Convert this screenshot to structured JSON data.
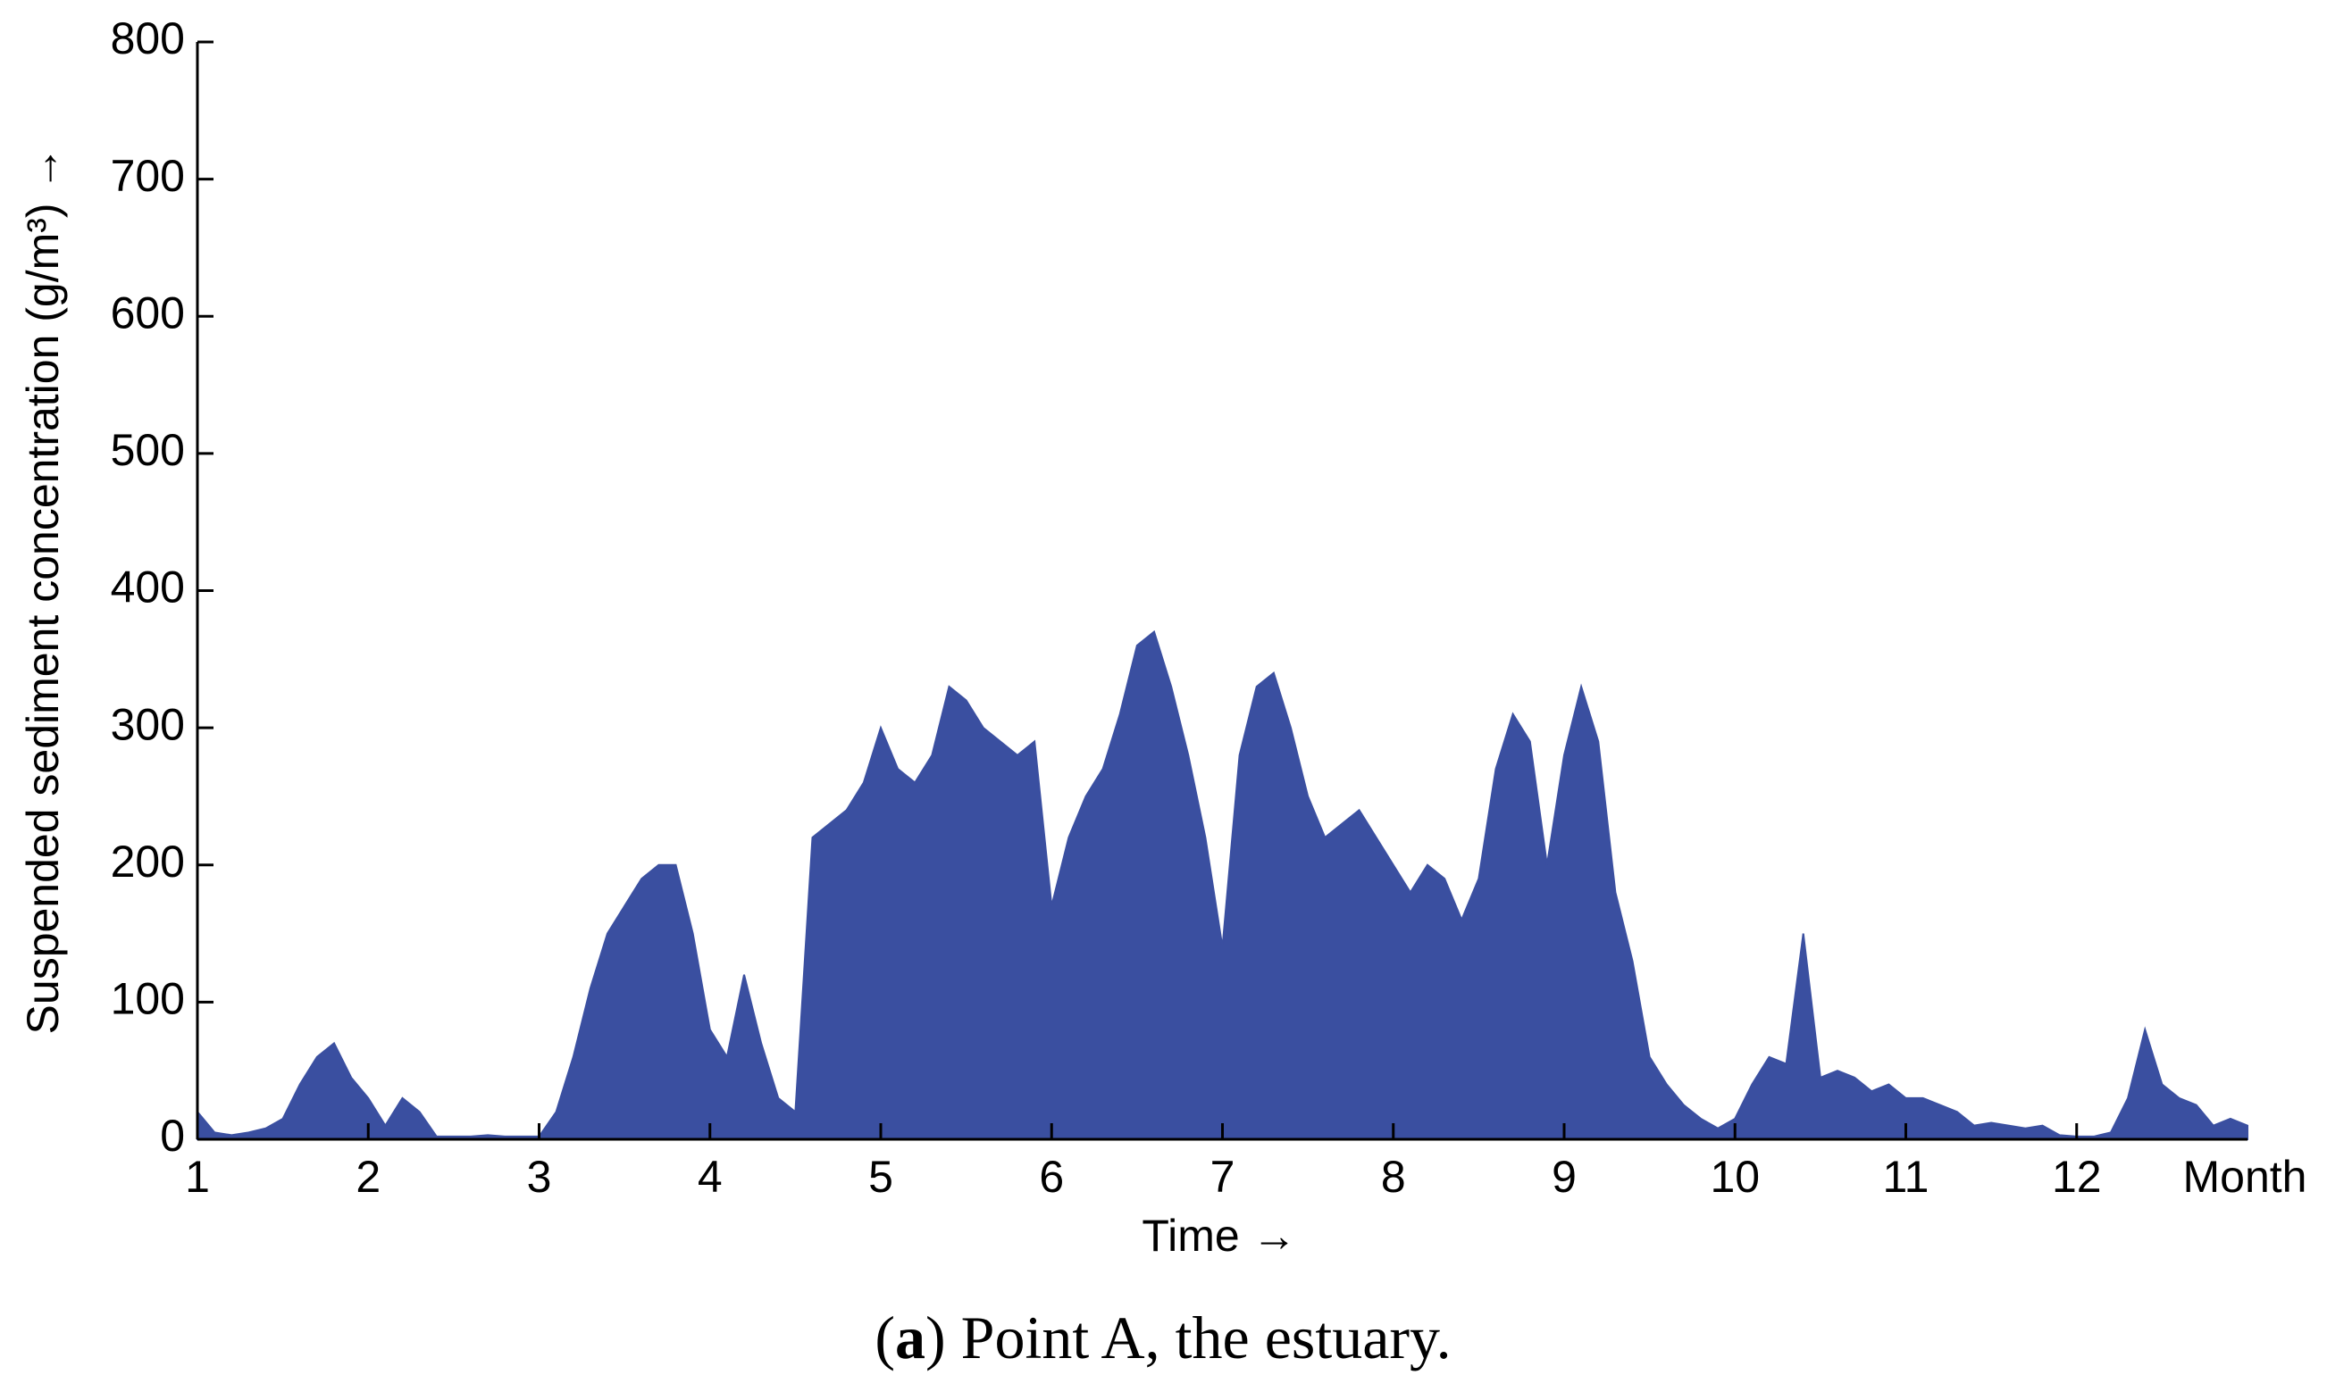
{
  "chart_data": {
    "type": "area",
    "y_label": "Suspended sediment concentration (g/m³) →",
    "x_label": "Time →",
    "x_unit_label": "Month",
    "caption": {
      "open": "(",
      "letter": "a",
      "text": ") Point A, the estuary."
    },
    "x": [
      1.0,
      1.1,
      1.2,
      1.3,
      1.4,
      1.5,
      1.6,
      1.7,
      1.8,
      1.9,
      2.0,
      2.1,
      2.2,
      2.3,
      2.4,
      2.5,
      2.6,
      2.7,
      2.8,
      2.9,
      3.0,
      3.1,
      3.2,
      3.3,
      3.4,
      3.5,
      3.6,
      3.7,
      3.8,
      3.9,
      4.0,
      4.1,
      4.2,
      4.3,
      4.4,
      4.5,
      4.6,
      4.7,
      4.8,
      4.9,
      5.0,
      5.1,
      5.2,
      5.3,
      5.4,
      5.5,
      5.6,
      5.7,
      5.8,
      5.9,
      6.0,
      6.1,
      6.2,
      6.3,
      6.4,
      6.5,
      6.6,
      6.7,
      6.8,
      6.9,
      7.0,
      7.1,
      7.2,
      7.3,
      7.4,
      7.5,
      7.6,
      7.7,
      7.8,
      7.9,
      8.0,
      8.1,
      8.2,
      8.3,
      8.4,
      8.5,
      8.6,
      8.7,
      8.8,
      8.9,
      9.0,
      9.1,
      9.2,
      9.3,
      9.4,
      9.5,
      9.6,
      9.7,
      9.8,
      9.9,
      10.0,
      10.1,
      10.2,
      10.3,
      10.4,
      10.5,
      10.6,
      10.7,
      10.8,
      10.9,
      11.0,
      11.1,
      11.2,
      11.3,
      11.4,
      11.5,
      11.6,
      11.7,
      11.8,
      11.9,
      12.0,
      12.1,
      12.2,
      12.3,
      12.4,
      12.5,
      12.6,
      12.7,
      12.8,
      12.9,
      13.0
    ],
    "values": [
      20,
      5,
      3,
      5,
      8,
      15,
      40,
      60,
      70,
      45,
      30,
      10,
      30,
      20,
      2,
      2,
      2,
      3,
      2,
      2,
      2,
      20,
      60,
      110,
      150,
      170,
      190,
      200,
      200,
      150,
      80,
      60,
      120,
      70,
      30,
      20,
      220,
      230,
      240,
      260,
      300,
      270,
      260,
      280,
      330,
      320,
      300,
      290,
      280,
      290,
      170,
      220,
      250,
      270,
      310,
      360,
      370,
      330,
      280,
      220,
      140,
      280,
      330,
      340,
      300,
      250,
      220,
      230,
      240,
      220,
      200,
      180,
      200,
      190,
      160,
      190,
      270,
      310,
      290,
      200,
      280,
      330,
      290,
      180,
      130,
      60,
      40,
      25,
      15,
      8,
      15,
      40,
      60,
      55,
      150,
      45,
      50,
      45,
      35,
      40,
      30,
      30,
      25,
      20,
      10,
      12,
      10,
      8,
      10,
      3,
      2,
      2,
      5,
      30,
      80,
      40,
      30,
      25,
      10,
      15,
      10
    ],
    "color": "#3a4fa0",
    "xlim": [
      1,
      13
    ],
    "xticks": [
      1,
      2,
      3,
      4,
      5,
      6,
      7,
      8,
      9,
      10,
      11,
      12
    ],
    "ylim": [
      0,
      800
    ],
    "yticks": [
      0,
      100,
      200,
      300,
      400,
      500,
      600,
      700,
      800
    ]
  }
}
